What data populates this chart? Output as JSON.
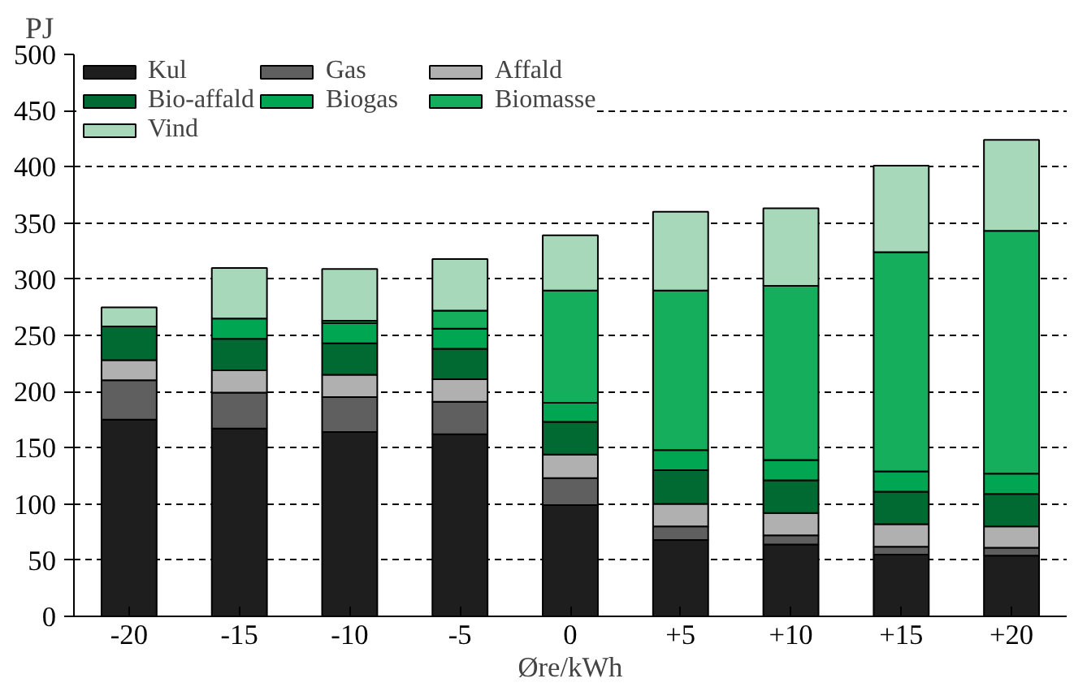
{
  "chart_data": {
    "type": "bar",
    "stacked": true,
    "ylabel": "PJ",
    "xlabel": "Øre/kWh",
    "categories": [
      "-20",
      "-15",
      "-10",
      "-5",
      "0",
      "+5",
      "+10",
      "+15",
      "+20"
    ],
    "series": [
      {
        "name": "Kul",
        "color": "#1e1e1e",
        "values": [
          175,
          167,
          164,
          162,
          99,
          68,
          64,
          55,
          54
        ]
      },
      {
        "name": "Gas",
        "color": "#5f5f5f",
        "values": [
          35,
          32,
          31,
          29,
          24,
          12,
          8,
          7,
          7
        ]
      },
      {
        "name": "Affald",
        "color": "#b0b0b0",
        "values": [
          18,
          20,
          20,
          20,
          21,
          20,
          20,
          20,
          19
        ]
      },
      {
        "name": "Bio-affald",
        "color": "#006a33",
        "values": [
          30,
          28,
          28,
          27,
          29,
          30,
          29,
          29,
          29
        ]
      },
      {
        "name": "Biogas",
        "color": "#00a651",
        "values": [
          0,
          18,
          18,
          18,
          17,
          18,
          18,
          18,
          18
        ]
      },
      {
        "name": "Biomasse",
        "color": "#14ae5c",
        "values": [
          0,
          0,
          2,
          16,
          100,
          142,
          155,
          195,
          216
        ]
      },
      {
        "name": "Vind",
        "color": "#a6d8b9",
        "values": [
          17,
          45,
          46,
          46,
          49,
          70,
          69,
          77,
          81
        ]
      }
    ],
    "ylim": [
      0,
      500
    ],
    "yticks": [
      0,
      50,
      100,
      150,
      200,
      250,
      300,
      350,
      400,
      450,
      500
    ],
    "grid": "y",
    "legend": "top left"
  }
}
